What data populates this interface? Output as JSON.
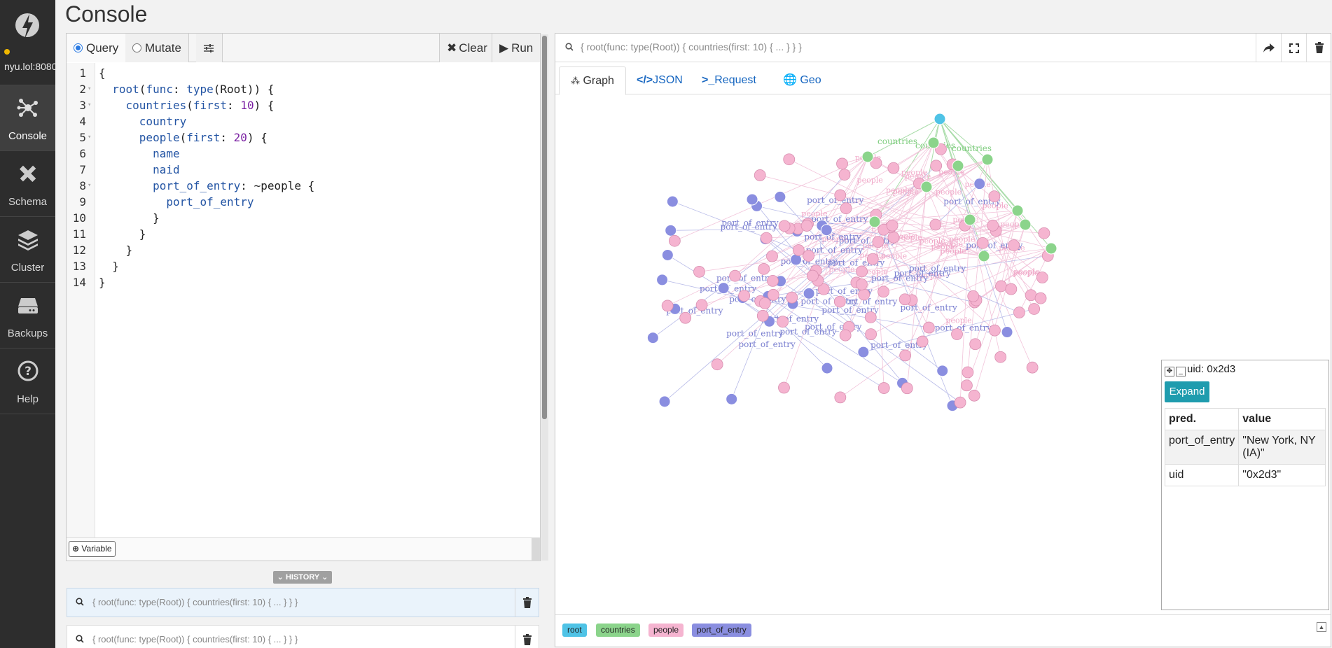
{
  "app": {
    "title": "Console"
  },
  "sidebar": {
    "server": "nyu.lol:8080",
    "items": [
      {
        "label": "Console",
        "icon": "graph-nodes-icon",
        "active": true
      },
      {
        "label": "Schema",
        "icon": "pencil-ruler-icon",
        "active": false
      },
      {
        "label": "Cluster",
        "icon": "layers-icon",
        "active": false
      },
      {
        "label": "Backups",
        "icon": "hard-drive-icon",
        "active": false
      },
      {
        "label": "Help",
        "icon": "question-circle-icon",
        "active": false
      }
    ]
  },
  "editor": {
    "mode_query": "Query",
    "mode_mutate": "Mutate",
    "selected_mode": "Query",
    "clear_label": "Clear",
    "run_label": "Run",
    "variable_label": "Variable",
    "lines": [
      "{",
      "  root(func: type(Root)) {",
      "    countries(first: 10) {",
      "      country",
      "      people(first: 20) {",
      "        name",
      "        naid",
      "        port_of_entry: ~people {",
      "          port_of_entry",
      "        }",
      "      }",
      "    }",
      "  }",
      "}"
    ]
  },
  "history": {
    "label": "HISTORY",
    "items": [
      "{ root(func: type(Root)) { countries(first: 10) { ... } } }",
      "{ root(func: type(Root)) { countries(first: 10) { ... } } }"
    ]
  },
  "result": {
    "query_summary": "{ root(func: type(Root)) { countries(first: 10) { ... } } }",
    "tabs": [
      "Graph",
      "JSON",
      "Request",
      "Geo"
    ],
    "active_tab": "Graph",
    "edge_labels": {
      "countries": "countries",
      "people": "people",
      "port_of_entry": "port_of_entry"
    },
    "legend": [
      {
        "label": "root",
        "color": "#4fc3e6"
      },
      {
        "label": "countries",
        "color": "#8bd48b"
      },
      {
        "label": "people",
        "color": "#f5b4d0"
      },
      {
        "label": "port_of_entry",
        "color": "#8a8ee0"
      }
    ]
  },
  "properties": {
    "title": "uid: 0x2d3",
    "expand_label": "Expand",
    "col_pred": "pred.",
    "col_value": "value",
    "rows": [
      {
        "pred": "port_of_entry",
        "value": "\"New York, NY (IA)\""
      },
      {
        "pred": "uid",
        "value": "\"0x2d3\""
      }
    ]
  }
}
